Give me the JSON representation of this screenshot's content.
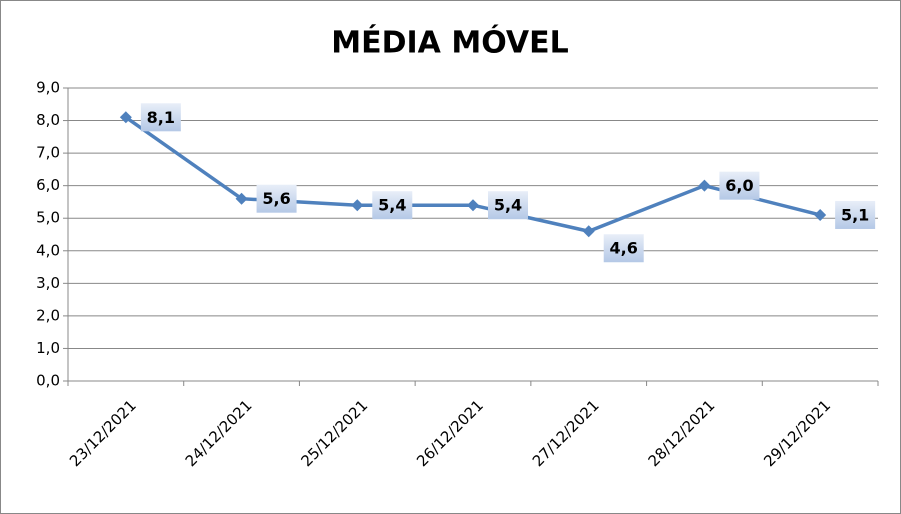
{
  "chart_data": {
    "type": "line",
    "title": "MÉDIA MÓVEL",
    "categories": [
      "23/12/2021",
      "24/12/2021",
      "25/12/2021",
      "26/12/2021",
      "27/12/2021",
      "28/12/2021",
      "29/12/2021"
    ],
    "series": [
      {
        "color": "#4f81bd",
        "values": [
          8.1,
          5.6,
          5.4,
          5.4,
          4.6,
          6.0,
          5.1
        ],
        "value_labels": [
          "8,1",
          "5,6",
          "5,4",
          "5,4",
          "4,6",
          "6,0",
          "5,1"
        ]
      }
    ],
    "ylim": [
      0,
      9
    ],
    "yticks": [
      {
        "value": 0,
        "label": "0,0"
      },
      {
        "value": 1,
        "label": "1,0"
      },
      {
        "value": 2,
        "label": "2,0"
      },
      {
        "value": 3,
        "label": "3,0"
      },
      {
        "value": 4,
        "label": "4,0"
      },
      {
        "value": 5,
        "label": "5,0"
      },
      {
        "value": 6,
        "label": "6,0"
      },
      {
        "value": 7,
        "label": "7,0"
      },
      {
        "value": 8,
        "label": "8,0"
      },
      {
        "value": 9,
        "label": "9,0"
      }
    ],
    "grid": true
  }
}
